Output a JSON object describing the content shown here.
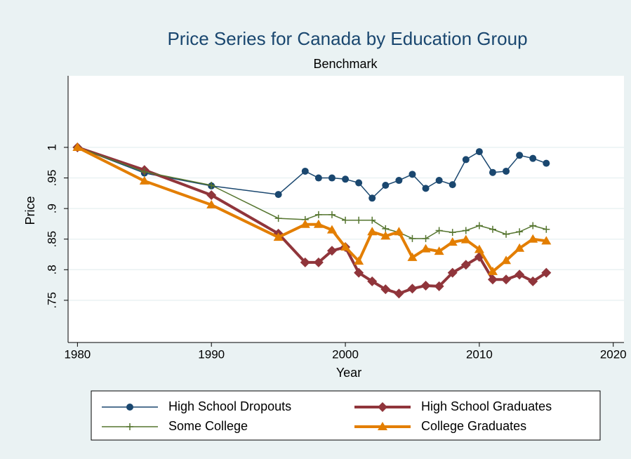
{
  "chart_data": {
    "type": "line",
    "title": "Price Series for Canada by Education Group",
    "subtitle": "Benchmark",
    "x_label": "Year",
    "y_label": "Price",
    "x": [
      1980,
      1985,
      1990,
      1995,
      1997,
      1998,
      1999,
      2000,
      2001,
      2002,
      2003,
      2004,
      2005,
      2006,
      2007,
      2008,
      2009,
      2010,
      2011,
      2012,
      2013,
      2014,
      2015
    ],
    "series": [
      {
        "name": "High School Dropouts",
        "color": "#1a476f",
        "marker": "circle",
        "width": 1.5,
        "values": [
          1.0,
          0.958,
          0.937,
          0.923,
          0.961,
          0.95,
          0.95,
          0.948,
          0.942,
          0.917,
          0.938,
          0.946,
          0.956,
          0.933,
          0.946,
          0.939,
          0.98,
          0.993,
          0.959,
          0.961,
          0.987,
          0.982,
          0.974
        ]
      },
      {
        "name": "High School Graduates",
        "color": "#90353b",
        "marker": "diamond",
        "width": 4,
        "values": [
          1.0,
          0.963,
          0.922,
          0.859,
          0.812,
          0.812,
          0.831,
          0.837,
          0.795,
          0.781,
          0.768,
          0.761,
          0.769,
          0.774,
          0.773,
          0.795,
          0.808,
          0.821,
          0.784,
          0.784,
          0.792,
          0.781,
          0.795
        ]
      },
      {
        "name": "Some College",
        "color": "#55752f",
        "marker": "plus",
        "width": 1.5,
        "values": [
          1.0,
          0.96,
          0.938,
          0.884,
          0.882,
          0.89,
          0.89,
          0.881,
          0.881,
          0.881,
          0.867,
          0.861,
          0.851,
          0.851,
          0.864,
          0.861,
          0.864,
          0.872,
          0.866,
          0.858,
          0.862,
          0.872,
          0.866
        ]
      },
      {
        "name": "College Graduates",
        "color": "#e37e00",
        "marker": "triangle",
        "width": 4,
        "values": [
          1.0,
          0.945,
          0.906,
          0.853,
          0.874,
          0.874,
          0.865,
          0.837,
          0.814,
          0.862,
          0.855,
          0.862,
          0.82,
          0.834,
          0.83,
          0.845,
          0.849,
          0.833,
          0.797,
          0.815,
          0.835,
          0.85,
          0.847
        ]
      }
    ],
    "xlim": [
      1979.3,
      2020.8
    ],
    "xticks": [
      1980,
      1990,
      2000,
      2010,
      2020
    ],
    "ylim": [
      0.681,
      1.117
    ],
    "yticks": [
      {
        "value": 0.75,
        "label": ".75"
      },
      {
        "value": 0.8,
        "label": ".8"
      },
      {
        "value": 0.85,
        "label": ".85"
      },
      {
        "value": 0.9,
        "label": ".9"
      },
      {
        "value": 0.95,
        "label": ".95"
      },
      1
    ],
    "grid": true,
    "legend": "bottom"
  }
}
